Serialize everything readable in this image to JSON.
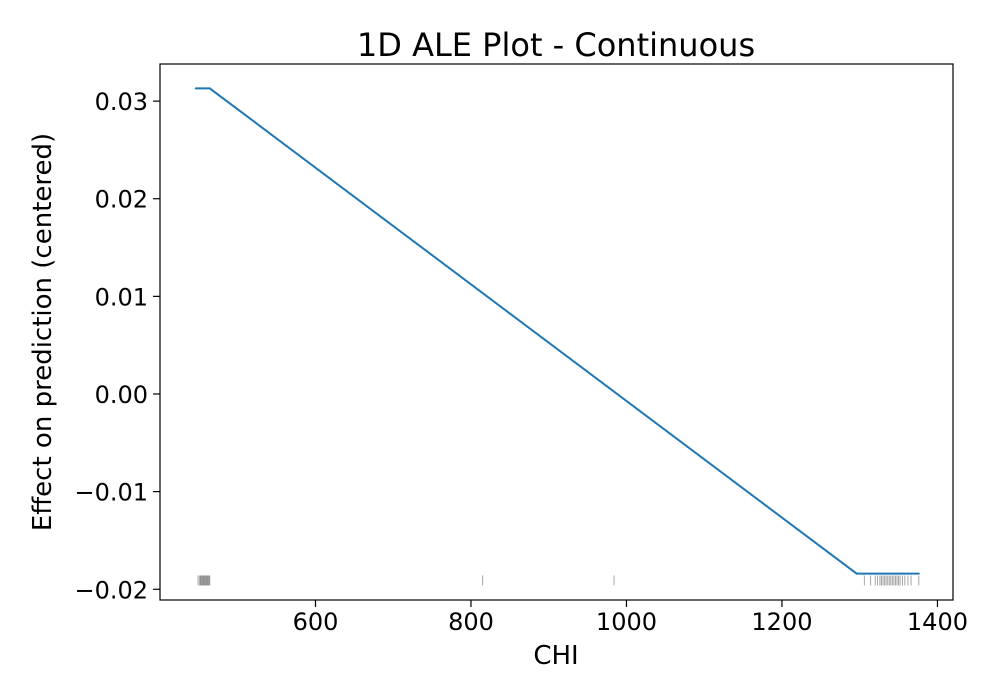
{
  "chart_data": {
    "type": "line",
    "title": "1D ALE Plot - Continuous",
    "xlabel": "CHI",
    "ylabel": "Effect on prediction (centered)",
    "xlim": [
      400,
      1420
    ],
    "ylim": [
      -0.0211,
      0.0338
    ],
    "xticks": [
      600,
      800,
      1000,
      1200,
      1400
    ],
    "xtick_labels": [
      "600",
      "800",
      "1000",
      "1200",
      "1400"
    ],
    "yticks": [
      -0.02,
      -0.01,
      0.0,
      0.01,
      0.02,
      0.03
    ],
    "ytick_labels": [
      "−0.02",
      "−0.01",
      "0.00",
      "0.01",
      "0.02",
      "0.03"
    ],
    "grid": false,
    "series": [
      {
        "color": "#1f77b4",
        "x": [
          446,
          464,
          1296,
          1376
        ],
        "y": [
          0.0313,
          0.0313,
          -0.0184,
          -0.0184
        ]
      }
    ],
    "rug": {
      "color": "#000000",
      "y": -0.0191,
      "x": [
        449,
        451,
        452,
        453,
        454,
        455,
        456,
        457,
        458,
        459,
        460,
        461,
        462,
        463,
        464,
        815,
        984,
        1306,
        1314,
        1320,
        1323,
        1326,
        1328,
        1330,
        1332,
        1334,
        1336,
        1338,
        1340,
        1342,
        1344,
        1346,
        1348,
        1350,
        1352,
        1355,
        1358,
        1362,
        1366,
        1376
      ]
    }
  }
}
